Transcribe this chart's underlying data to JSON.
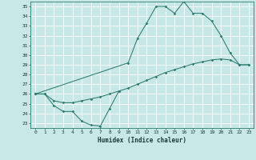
{
  "xlabel": "Humidex (Indice chaleur)",
  "bg_color": "#c8e8e8",
  "grid_color": "#ffffff",
  "line_color": "#2d7b6e",
  "xlim": [
    -0.5,
    23.5
  ],
  "ylim": [
    22.5,
    35.5
  ],
  "xticks": [
    0,
    1,
    2,
    3,
    4,
    5,
    6,
    7,
    8,
    9,
    10,
    11,
    12,
    13,
    14,
    15,
    16,
    17,
    18,
    19,
    20,
    21,
    22,
    23
  ],
  "yticks": [
    23,
    24,
    25,
    26,
    27,
    28,
    29,
    30,
    31,
    32,
    33,
    34,
    35
  ],
  "s1_x": [
    0,
    1,
    2,
    3,
    4,
    5,
    6,
    7,
    8,
    9
  ],
  "s1_y": [
    26.0,
    26.0,
    24.8,
    24.2,
    24.2,
    23.2,
    22.8,
    22.7,
    24.5,
    26.3
  ],
  "s2_x": [
    0,
    10,
    11,
    12,
    13,
    14,
    15,
    16,
    17,
    18,
    19,
    20,
    21,
    22,
    23
  ],
  "s2_y": [
    26.0,
    29.2,
    31.7,
    33.3,
    35.0,
    35.0,
    34.3,
    35.5,
    34.3,
    34.3,
    33.5,
    32.0,
    30.2,
    29.0,
    29.0
  ],
  "s3_x": [
    0,
    1,
    2,
    3,
    4,
    5,
    6,
    7,
    8,
    9,
    10,
    11,
    12,
    13,
    14,
    15,
    16,
    17,
    18,
    19,
    20,
    21,
    22,
    23
  ],
  "s3_y": [
    26.0,
    26.0,
    25.3,
    25.1,
    25.1,
    25.3,
    25.5,
    25.7,
    26.0,
    26.3,
    26.6,
    27.0,
    27.4,
    27.8,
    28.2,
    28.5,
    28.8,
    29.1,
    29.3,
    29.5,
    29.6,
    29.5,
    29.0,
    29.0
  ]
}
